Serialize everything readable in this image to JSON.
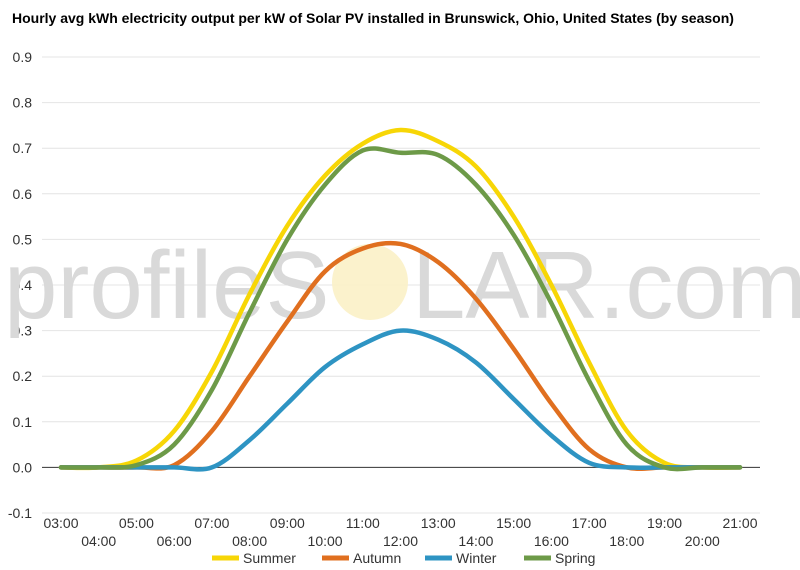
{
  "chart_data": {
    "type": "line",
    "title": "Hourly avg kWh electricity output per kW of Solar PV installed in Brunswick, Ohio, United States (by season)",
    "watermark": {
      "left": "profileS",
      "right": "LAR.com"
    },
    "x": [
      "03:00",
      "04:00",
      "05:00",
      "06:00",
      "07:00",
      "08:00",
      "09:00",
      "10:00",
      "11:00",
      "12:00",
      "13:00",
      "14:00",
      "15:00",
      "16:00",
      "17:00",
      "18:00",
      "19:00",
      "20:00",
      "21:00"
    ],
    "x_tick_labels_upper": [
      "03:00",
      "05:00",
      "07:00",
      "09:00",
      "11:00",
      "13:00",
      "15:00",
      "17:00",
      "19:00",
      "21:00"
    ],
    "x_tick_labels_lower": [
      "04:00",
      "06:00",
      "08:00",
      "10:00",
      "12:00",
      "14:00",
      "16:00",
      "18:00",
      "20:00"
    ],
    "y_ticks": [
      "-0.1",
      "0.0",
      "0.1",
      "0.2",
      "0.3",
      "0.4",
      "0.5",
      "0.6",
      "0.7",
      "0.8",
      "0.9"
    ],
    "ylim": [
      -0.1,
      0.9
    ],
    "grid": true,
    "legend_position": "bottom",
    "series": [
      {
        "name": "Summer",
        "color": "#f7d606",
        "values": [
          0.0,
          0.0,
          0.015,
          0.08,
          0.21,
          0.38,
          0.53,
          0.64,
          0.71,
          0.74,
          0.715,
          0.66,
          0.55,
          0.4,
          0.23,
          0.08,
          0.01,
          0.0,
          0.0
        ]
      },
      {
        "name": "Autumn",
        "color": "#e06f1f",
        "values": [
          0.0,
          0.0,
          0.0,
          0.005,
          0.08,
          0.2,
          0.32,
          0.43,
          0.48,
          0.49,
          0.45,
          0.37,
          0.26,
          0.14,
          0.04,
          0.0,
          0.0,
          0.0,
          0.0
        ]
      },
      {
        "name": "Winter",
        "color": "#2e94c3",
        "values": [
          0.0,
          0.0,
          0.0,
          0.0,
          0.0,
          0.06,
          0.14,
          0.22,
          0.27,
          0.3,
          0.28,
          0.23,
          0.15,
          0.07,
          0.01,
          0.0,
          0.0,
          0.0,
          0.0
        ]
      },
      {
        "name": "Spring",
        "color": "#6d9a48",
        "values": [
          0.0,
          0.0,
          0.005,
          0.05,
          0.17,
          0.34,
          0.5,
          0.62,
          0.695,
          0.69,
          0.685,
          0.62,
          0.51,
          0.36,
          0.19,
          0.05,
          0.0,
          0.0,
          0.0
        ]
      }
    ]
  }
}
